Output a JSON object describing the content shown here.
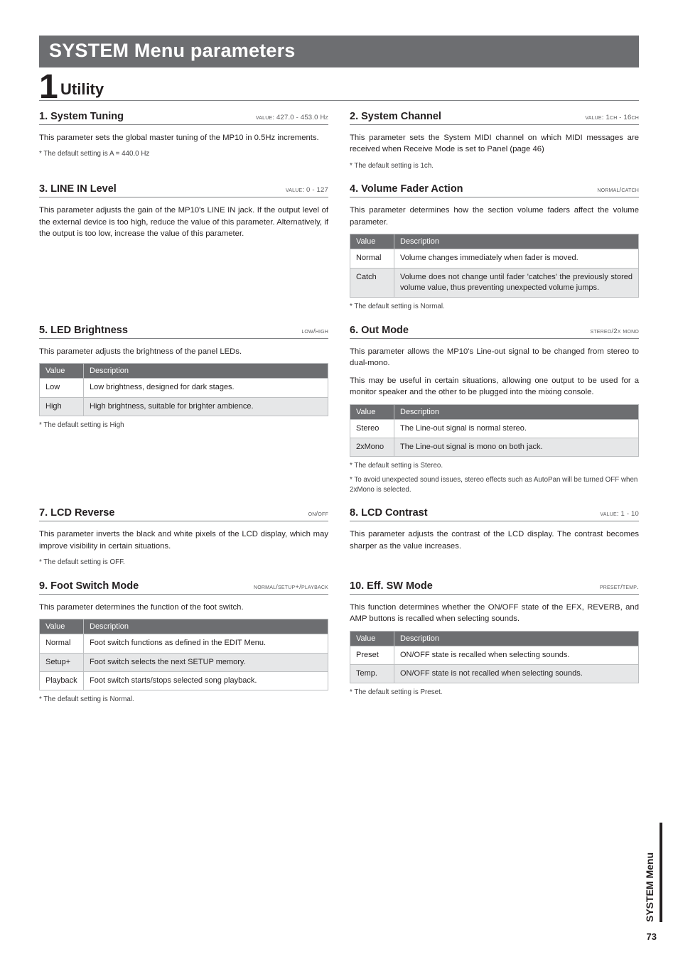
{
  "banner": "SYSTEM Menu parameters",
  "chapter": {
    "num": "1",
    "label": "Utility"
  },
  "side_tab": "SYSTEM Menu",
  "page_number": "73",
  "s1": {
    "title": "1. System Tuning",
    "value": "value: 427.0 - 453.0 Hz",
    "body": "This parameter sets the global master tuning of the MP10 in 0.5Hz increments.",
    "note": "* The default setting is A = 440.0 Hz"
  },
  "s2": {
    "title": "2. System Channel",
    "value": "value: 1ch - 16ch",
    "body": "This parameter sets the System MIDI channel on which MIDI messages are received when Receive Mode is set to Panel (page 46)",
    "note": "* The default setting is 1ch."
  },
  "s3": {
    "title": "3. LINE IN Level",
    "value": "value: 0 - 127",
    "body": "This parameter adjusts the gain of the MP10's LINE IN jack. If the output level of the external device is too high, reduce the value of this parameter.  Alternatively, if the output is too low, increase the value of this parameter."
  },
  "s4": {
    "title": "4. Volume Fader Action",
    "value": "normal/catch",
    "body": "This parameter determines how the section volume faders affect the volume parameter.",
    "table": {
      "col0": "Value",
      "col1": "Description",
      "rows": [
        {
          "v": "Normal",
          "d": "Volume changes immediately when fader is moved.",
          "shade": false
        },
        {
          "v": "Catch",
          "d": "Volume does not change until fader 'catches' the previously stored volume value, thus preventing unexpected volume jumps.",
          "shade": true
        }
      ]
    },
    "note": "* The default setting is Normal."
  },
  "s5": {
    "title": "5. LED Brightness",
    "value": "low/high",
    "body": "This parameter adjusts the brightness of the panel LEDs.",
    "table": {
      "col0": "Value",
      "col1": "Description",
      "rows": [
        {
          "v": "Low",
          "d": "Low brightness, designed for dark stages.",
          "shade": false
        },
        {
          "v": "High",
          "d": "High brightness, suitable for brighter ambience.",
          "shade": true
        }
      ]
    },
    "note": "* The default setting is High"
  },
  "s6": {
    "title": "6. Out Mode",
    "value": "stereo/2x mono",
    "body1": "This parameter allows the MP10's Line-out signal to be changed from stereo to dual-mono.",
    "body2": "This may be useful in certain situations, allowing one output to be used for a monitor speaker and the other to be plugged into the mixing console.",
    "table": {
      "col0": "Value",
      "col1": "Description",
      "rows": [
        {
          "v": "Stereo",
          "d": "The Line-out signal is normal stereo.",
          "shade": false
        },
        {
          "v": "2xMono",
          "d": "The Line-out signal is mono on both jack.",
          "shade": true
        }
      ]
    },
    "note1": "* The default setting is Stereo.",
    "note2": "* To avoid unexpected sound issues, stereo effects such as AutoPan will be turned OFF when 2xMono is selected."
  },
  "s7": {
    "title": "7. LCD Reverse",
    "value": "on/off",
    "body": "This parameter inverts the black and white pixels of the LCD display, which may improve visibility in certain situations.",
    "note": "* The default setting is OFF."
  },
  "s8": {
    "title": "8. LCD Contrast",
    "value": "value: 1 - 10",
    "body": "This parameter adjusts the contrast of the LCD display. The contrast becomes sharper as the value increases."
  },
  "s9": {
    "title": "9. Foot Switch Mode",
    "value": "normal/setup+/playback",
    "body": "This parameter determines the function of the foot switch.",
    "table": {
      "col0": "Value",
      "col1": "Description",
      "rows": [
        {
          "v": "Normal",
          "d": "Foot switch functions as defined in the EDIT Menu.",
          "shade": false
        },
        {
          "v": "Setup+",
          "d": "Foot switch selects the next SETUP memory.",
          "shade": true
        },
        {
          "v": "Playback",
          "d": "Foot switch starts/stops selected song playback.",
          "shade": false
        }
      ]
    },
    "note": "* The default setting is Normal."
  },
  "s10": {
    "title": "10. Eff. SW Mode",
    "value": "preset/temp.",
    "body": "This function determines whether the ON/OFF state of the EFX, REVERB, and AMP buttons is recalled when selecting sounds.",
    "table": {
      "col0": "Value",
      "col1": "Description",
      "rows": [
        {
          "v": "Preset",
          "d": "ON/OFF state is recalled when selecting sounds.",
          "shade": false
        },
        {
          "v": "Temp.",
          "d": "ON/OFF state is not recalled when selecting sounds.",
          "shade": true
        }
      ]
    },
    "note": "* The default setting is Preset."
  }
}
